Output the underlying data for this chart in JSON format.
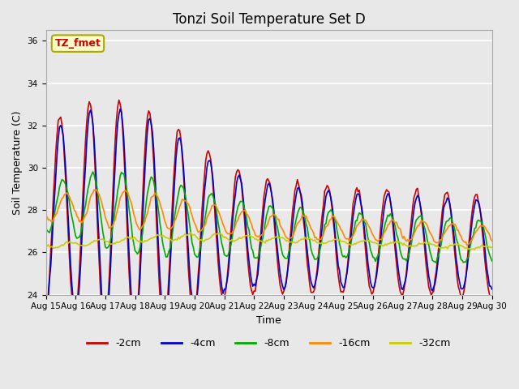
{
  "title": "Tonzi Soil Temperature Set D",
  "xlabel": "Time",
  "ylabel": "Soil Temperature (C)",
  "ylim": [
    24,
    36.5
  ],
  "xlim": [
    0,
    15
  ],
  "x_tick_labels": [
    "Aug 15",
    "Aug 16",
    "Aug 17",
    "Aug 18",
    "Aug 19",
    "Aug 20",
    "Aug 21",
    "Aug 22",
    "Aug 23",
    "Aug 24",
    "Aug 25",
    "Aug 26",
    "Aug 27",
    "Aug 28",
    "Aug 29",
    "Aug 30"
  ],
  "series_labels": [
    "-2cm",
    "-4cm",
    "-8cm",
    "-16cm",
    "-32cm"
  ],
  "series_colors": [
    "#cc0000",
    "#0000cc",
    "#00aa00",
    "#ff8800",
    "#cccc00"
  ],
  "annotation_text": "TZ_fmet",
  "annotation_bg": "#ffffcc",
  "annotation_border": "#aaaa00",
  "annotation_color": "#cc0000",
  "bg_color": "#e8e8e8",
  "grid_color": "#ffffff",
  "linewidth": 1.2,
  "yticks": [
    24,
    26,
    28,
    30,
    32,
    34,
    36
  ],
  "title_fontsize": 12,
  "axis_fontsize": 9,
  "tick_fontsize": 7.5,
  "legend_fontsize": 9
}
